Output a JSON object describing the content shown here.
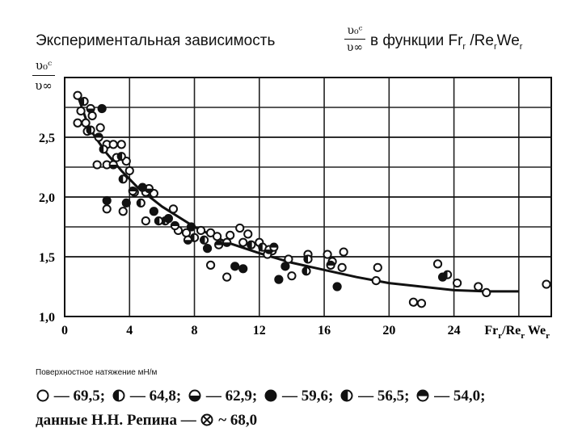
{
  "title": {
    "left": "Экспериментальная зависимость",
    "right_prefix": "в функции Fr",
    "right_sub1": "r",
    "right_mid1": " /Re",
    "right_sub2": "r",
    "right_mid2": "We",
    "right_sub3": "r",
    "frac_num": "υ₀ᶜ",
    "frac_den": "υ∞"
  },
  "legend": {
    "caption": "Поверхностное натяжение мН/м",
    "items": [
      {
        "marker": "open-circle",
        "label": "— 69,5;"
      },
      {
        "marker": "left-half-filled-circle",
        "label": "— 64,8;"
      },
      {
        "marker": "bottom-half-filled-circle",
        "label": "— 62,9;"
      },
      {
        "marker": "filled-circle",
        "label": "— 59,6;"
      },
      {
        "marker": "left-filled-circle",
        "label": "— 56,5;"
      },
      {
        "marker": "top-filled-circle",
        "label": "— 54,0;"
      }
    ],
    "repin_prefix": "данные",
    "repin_name": "Н.Н. Репина",
    "repin_dash": "—",
    "repin_marker": "crossed-circle",
    "repin_value": "~ 68,0"
  },
  "chart_data": {
    "type": "scatter",
    "title": "",
    "xlabel": "Fr_r/Re_r We_r",
    "ylabel": "υ₀ᶜ/υ∞",
    "xlim": [
      0,
      30
    ],
    "ylim": [
      1.0,
      3.0
    ],
    "x_ticks": [
      0,
      4,
      8,
      12,
      16,
      20,
      24
    ],
    "x_tick_labels": [
      "0",
      "4",
      "8",
      "12",
      "16",
      "20",
      "24"
    ],
    "y_ticks": [
      1.0,
      1.5,
      2.0,
      2.5
    ],
    "y_tick_labels": [
      "1,0",
      "1,5",
      "2,0",
      "2,5"
    ],
    "grid": true,
    "fit_curve": {
      "x": [
        0.8,
        1.5,
        2.5,
        3.5,
        4.5,
        6,
        8,
        10,
        12,
        14,
        16,
        18,
        20,
        22,
        24,
        26,
        28
      ],
      "y": [
        2.85,
        2.58,
        2.38,
        2.22,
        2.08,
        1.92,
        1.75,
        1.62,
        1.53,
        1.45,
        1.39,
        1.33,
        1.28,
        1.25,
        1.22,
        1.21,
        1.21
      ]
    },
    "series": [
      {
        "marker": "open-circle",
        "points": [
          [
            0.8,
            2.85
          ],
          [
            1.0,
            2.72
          ],
          [
            1.3,
            2.62
          ],
          [
            0.8,
            2.62
          ],
          [
            1.7,
            2.68
          ],
          [
            1.4,
            2.55
          ],
          [
            2.2,
            2.58
          ],
          [
            2.6,
            2.44
          ],
          [
            3.0,
            2.44
          ],
          [
            3.5,
            2.44
          ],
          [
            2.0,
            2.27
          ],
          [
            3.2,
            2.33
          ],
          [
            3.8,
            2.3
          ],
          [
            4.0,
            2.22
          ],
          [
            2.6,
            2.27
          ],
          [
            4.3,
            2.04
          ],
          [
            5.0,
            2.04
          ],
          [
            5.5,
            2.03
          ],
          [
            2.6,
            1.9
          ],
          [
            3.6,
            1.88
          ],
          [
            5.0,
            1.8
          ],
          [
            6.7,
            1.9
          ],
          [
            7.0,
            1.72
          ],
          [
            7.5,
            1.7
          ],
          [
            8.4,
            1.72
          ],
          [
            9.0,
            1.7
          ],
          [
            9.4,
            1.67
          ],
          [
            10.2,
            1.68
          ],
          [
            10.8,
            1.74
          ],
          [
            11.3,
            1.69
          ],
          [
            11.0,
            1.62
          ],
          [
            12.0,
            1.62
          ],
          [
            12.8,
            1.55
          ],
          [
            12.5,
            1.52
          ],
          [
            13.8,
            1.48
          ],
          [
            15.0,
            1.52
          ],
          [
            16.2,
            1.52
          ],
          [
            17.2,
            1.54
          ],
          [
            16.5,
            1.46
          ],
          [
            17.1,
            1.41
          ],
          [
            19.3,
            1.41
          ],
          [
            21.5,
            1.12
          ],
          [
            22.0,
            1.11
          ],
          [
            23.0,
            1.44
          ],
          [
            24.2,
            1.28
          ],
          [
            25.5,
            1.25
          ],
          [
            26.0,
            1.2
          ],
          [
            29.7,
            1.27
          ],
          [
            10.0,
            1.33
          ],
          [
            9.0,
            1.43
          ],
          [
            14.0,
            1.34
          ],
          [
            19.2,
            1.3
          ]
        ]
      },
      {
        "marker": "left-half-filled-circle",
        "points": [
          [
            1.2,
            2.8
          ],
          [
            2.4,
            2.4
          ],
          [
            3.6,
            2.15
          ],
          [
            4.7,
            1.95
          ],
          [
            6.2,
            1.8
          ],
          [
            8.0,
            1.66
          ],
          [
            12.2,
            1.58
          ],
          [
            15.0,
            1.48
          ],
          [
            23.6,
            1.35
          ]
        ]
      },
      {
        "marker": "bottom-half-filled-circle",
        "points": [
          [
            1.6,
            2.74
          ],
          [
            3.0,
            2.27
          ],
          [
            5.2,
            2.07
          ],
          [
            7.6,
            1.64
          ],
          [
            10.0,
            1.62
          ],
          [
            12.6,
            1.56
          ]
        ]
      },
      {
        "marker": "filled-circle",
        "points": [
          [
            2.3,
            2.74
          ],
          [
            2.6,
            1.97
          ],
          [
            3.8,
            1.95
          ],
          [
            4.8,
            2.08
          ],
          [
            5.5,
            1.88
          ],
          [
            6.4,
            1.82
          ],
          [
            7.8,
            1.75
          ],
          [
            8.8,
            1.57
          ],
          [
            10.5,
            1.42
          ],
          [
            11.0,
            1.4
          ],
          [
            13.6,
            1.42
          ],
          [
            13.2,
            1.31
          ],
          [
            16.8,
            1.25
          ],
          [
            23.3,
            1.33
          ]
        ]
      },
      {
        "marker": "left-filled-circle",
        "points": [
          [
            1.6,
            2.56
          ],
          [
            3.5,
            2.34
          ],
          [
            5.8,
            1.8
          ],
          [
            8.6,
            1.64
          ],
          [
            11.5,
            1.6
          ],
          [
            14.9,
            1.38
          ]
        ]
      },
      {
        "marker": "top-filled-circle",
        "points": [
          [
            2.1,
            2.5
          ],
          [
            4.2,
            2.05
          ],
          [
            6.8,
            1.76
          ],
          [
            9.5,
            1.6
          ],
          [
            12.9,
            1.58
          ],
          [
            16.4,
            1.43
          ]
        ]
      }
    ]
  }
}
